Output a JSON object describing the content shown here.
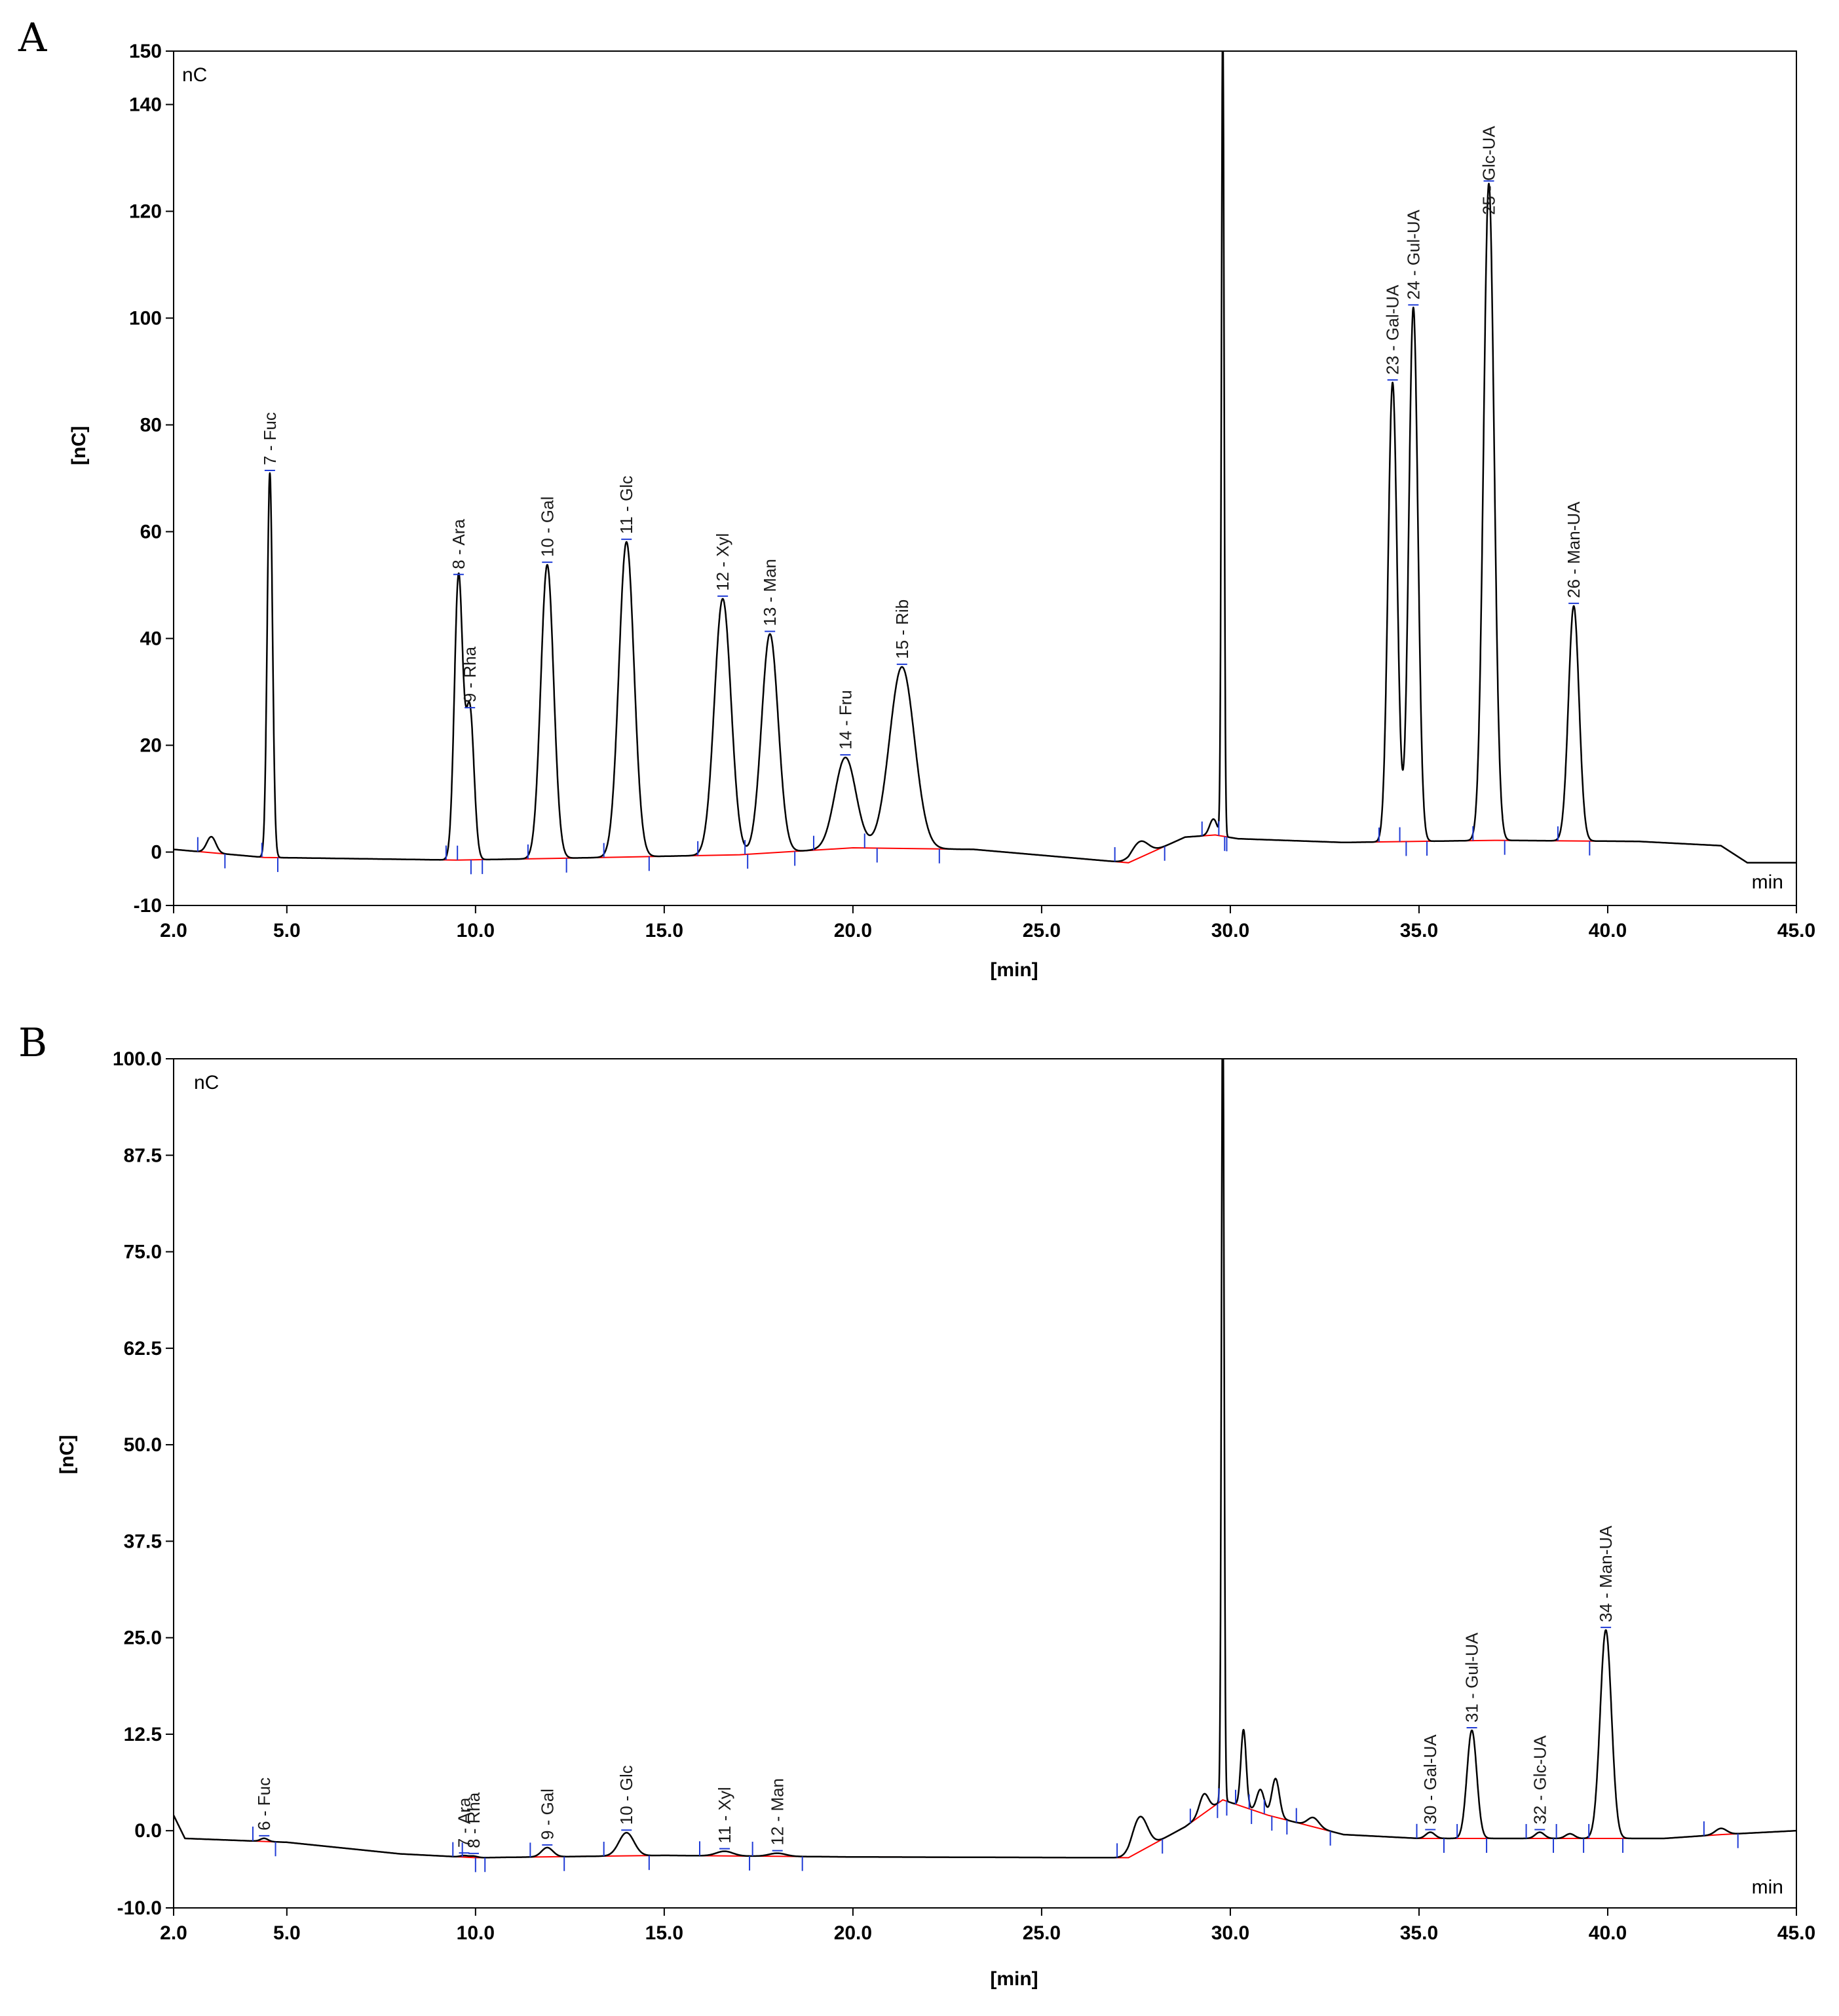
{
  "chart_data": [
    {
      "type": "line",
      "panel": "A",
      "unit_label": "nC",
      "xunit_label": "min",
      "xlabel": "[min]",
      "ylabel": "[nC]",
      "xlim": [
        2.0,
        45.0
      ],
      "ylim": [
        -10,
        150
      ],
      "xticks": [
        2.0,
        5.0,
        10.0,
        15.0,
        20.0,
        25.0,
        30.0,
        35.0,
        40.0,
        45.0
      ],
      "xtick_labels": [
        "2.0",
        "5.0",
        "10.0",
        "15.0",
        "20.0",
        "25.0",
        "30.0",
        "35.0",
        "40.0",
        "45.0"
      ],
      "yticks": [
        -10,
        0,
        20,
        40,
        60,
        80,
        100,
        120,
        140,
        150
      ],
      "ytick_labels": [
        "-10",
        "0",
        "20",
        "40",
        "60",
        "80",
        "100",
        "120",
        "140",
        "150"
      ],
      "baseline": [
        [
          2.0,
          0.5
        ],
        [
          4.4,
          -1.0
        ],
        [
          9.5,
          -1.5
        ],
        [
          12.0,
          -1.2
        ],
        [
          17.0,
          -0.5
        ],
        [
          20.0,
          0.8
        ],
        [
          23.2,
          0.5
        ],
        [
          27.3,
          -2.0
        ],
        [
          28.8,
          2.8
        ],
        [
          29.6,
          3.2
        ],
        [
          30.2,
          2.5
        ],
        [
          33.0,
          1.8
        ],
        [
          37.0,
          2.2
        ],
        [
          40.8,
          2.0
        ],
        [
          43.0,
          1.2
        ],
        [
          43.7,
          -2.0
        ],
        [
          45.0,
          -2.0
        ]
      ],
      "baseline_color": "#ff0000",
      "trace_color": "#000000",
      "marker_color": "#1f3bd6",
      "peaks": [
        {
          "x": 3.0,
          "h": 3,
          "w": 0.12
        },
        {
          "label": "7 - Fuc",
          "x": 4.55,
          "h": 72,
          "w": 0.07
        },
        {
          "label": "8 - Ara",
          "x": 9.55,
          "h": 53,
          "w": 0.11
        },
        {
          "label": "9 - Rha",
          "x": 9.85,
          "h": 28,
          "w": 0.11
        },
        {
          "label": "10 - Gal",
          "x": 11.9,
          "h": 55,
          "w": 0.17
        },
        {
          "label": "11 - Glc",
          "x": 14.0,
          "h": 59,
          "w": 0.2
        },
        {
          "label": "12 - Xyl",
          "x": 16.55,
          "h": 48,
          "w": 0.22
        },
        {
          "label": "13 - Man",
          "x": 17.8,
          "h": 41,
          "w": 0.22
        },
        {
          "label": "14 - Fru",
          "x": 19.8,
          "h": 17,
          "w": 0.28
        },
        {
          "label": "15 - Rib",
          "x": 21.3,
          "h": 34,
          "w": 0.33
        },
        {
          "x": 27.6,
          "h": 3,
          "w": 0.22
        },
        {
          "x": 29.55,
          "h": 3,
          "w": 0.1
        },
        {
          "x": 29.8,
          "h": 152,
          "w": 0.035
        },
        {
          "label": "23 - Gal-UA",
          "x": 34.3,
          "h": 86,
          "w": 0.12
        },
        {
          "label": "24 - Gul-UA",
          "x": 34.85,
          "h": 100,
          "w": 0.12
        },
        {
          "label": "25 - Glc-UA",
          "x": 36.85,
          "h": 123,
          "w": 0.14
        },
        {
          "label": "26 - Man-UA",
          "x": 39.1,
          "h": 44,
          "w": 0.14
        }
      ]
    },
    {
      "type": "line",
      "panel": "B",
      "unit_label": "nC",
      "xunit_label": "min",
      "xlabel": "[min]",
      "ylabel": "[nC]",
      "xlim": [
        2.0,
        45.0
      ],
      "ylim": [
        -10.0,
        100.0
      ],
      "xticks": [
        2.0,
        5.0,
        10.0,
        15.0,
        20.0,
        25.0,
        30.0,
        35.0,
        40.0,
        45.0
      ],
      "xtick_labels": [
        "2.0",
        "5.0",
        "10.0",
        "15.0",
        "20.0",
        "25.0",
        "30.0",
        "35.0",
        "40.0",
        "45.0"
      ],
      "yticks": [
        -10.0,
        0.0,
        12.5,
        25.0,
        37.5,
        50.0,
        62.5,
        75.0,
        87.5,
        100.0
      ],
      "ytick_labels": [
        "-10.0",
        "0.0",
        "12.5",
        "25.0",
        "37.5",
        "50.0",
        "62.5",
        "75.0",
        "87.5",
        "100.0"
      ],
      "baseline": [
        [
          2.0,
          2.0
        ],
        [
          2.3,
          -1.0
        ],
        [
          5.0,
          -1.5
        ],
        [
          8.0,
          -3.0
        ],
        [
          10.0,
          -3.5
        ],
        [
          15.0,
          -3.2
        ],
        [
          20.0,
          -3.4
        ],
        [
          27.3,
          -3.5
        ],
        [
          28.8,
          0.5
        ],
        [
          29.8,
          4.0
        ],
        [
          31.0,
          2.0
        ],
        [
          33.0,
          -0.5
        ],
        [
          35.0,
          -1.0
        ],
        [
          41.5,
          -1.0
        ],
        [
          43.0,
          -0.5
        ],
        [
          45.0,
          0.0
        ]
      ],
      "baseline_color": "#ff0000",
      "trace_color": "#000000",
      "marker_color": "#1f3bd6",
      "peaks": [
        {
          "label": "6 - Fuc",
          "x": 4.4,
          "h": 0.4,
          "w": 0.1
        },
        {
          "label": "7 - Ara",
          "x": 9.7,
          "h": 0.2,
          "w": 0.1
        },
        {
          "label": "8 - Rha",
          "x": 9.95,
          "h": 0.2,
          "w": 0.1
        },
        {
          "label": "9 - Gal",
          "x": 11.9,
          "h": 1.2,
          "w": 0.15
        },
        {
          "label": "10 - Glc",
          "x": 14.0,
          "h": 3.0,
          "w": 0.2
        },
        {
          "label": "11 - Xyl",
          "x": 16.6,
          "h": 0.6,
          "w": 0.22
        },
        {
          "label": "12 - Man",
          "x": 18.0,
          "h": 0.4,
          "w": 0.22
        },
        {
          "x": 27.6,
          "h": 4.5,
          "w": 0.2
        },
        {
          "x": 29.3,
          "h": 2.5,
          "w": 0.12
        },
        {
          "x": 29.8,
          "h": 104,
          "w": 0.035
        },
        {
          "x": 30.35,
          "h": 10,
          "w": 0.07
        },
        {
          "x": 30.8,
          "h": 3,
          "w": 0.1
        },
        {
          "x": 31.2,
          "h": 5,
          "w": 0.1
        },
        {
          "x": 32.2,
          "h": 1.2,
          "w": 0.15
        },
        {
          "label": "30 - Gal-UA",
          "x": 35.3,
          "h": 0.8,
          "w": 0.12
        },
        {
          "label": "31 - Gul-UA",
          "x": 36.4,
          "h": 14,
          "w": 0.13
        },
        {
          "label": "32 - Glc-UA",
          "x": 38.2,
          "h": 0.8,
          "w": 0.12
        },
        {
          "x": 39.0,
          "h": 0.6,
          "w": 0.12
        },
        {
          "label": "34 - Man-UA",
          "x": 39.95,
          "h": 27,
          "w": 0.15
        },
        {
          "x": 43.0,
          "h": 0.8,
          "w": 0.15
        }
      ]
    }
  ]
}
